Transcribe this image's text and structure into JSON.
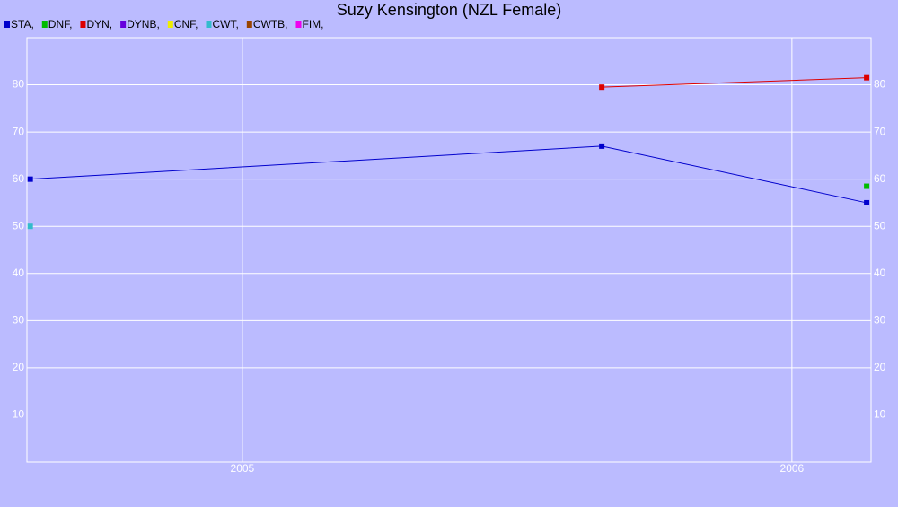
{
  "chart_data": {
    "type": "line",
    "title": "Suzy Kensington (NZL Female)",
    "series": [
      {
        "name": "STA,",
        "color": "#0000cc",
        "x": [
          2004.614,
          2005.654,
          2006.136
        ],
        "values": [
          60,
          67,
          55
        ]
      },
      {
        "name": "DNF,",
        "color": "#00bb00",
        "x": [
          2006.136
        ],
        "values": [
          58.5
        ]
      },
      {
        "name": "DYN,",
        "color": "#dd0000",
        "x": [
          2005.654,
          2006.136
        ],
        "values": [
          79.5,
          81.5
        ]
      },
      {
        "name": "DYNB,",
        "color": "#6600dd",
        "x": [],
        "values": []
      },
      {
        "name": "CNF,",
        "color": "#eeee00",
        "x": [],
        "values": []
      },
      {
        "name": "CWT,",
        "color": "#33bbcc",
        "x": [
          2004.614
        ],
        "values": [
          50
        ]
      },
      {
        "name": "CWTB,",
        "color": "#994400",
        "x": [],
        "values": []
      },
      {
        "name": "FIM,",
        "color": "#ee00ee",
        "x": [],
        "values": []
      }
    ],
    "xlim": [
      2004.608,
      2006.144
    ],
    "xticks": [
      2005,
      2006
    ],
    "ylim": [
      0,
      90
    ],
    "yticks": [
      10,
      20,
      30,
      40,
      50,
      60,
      70,
      80
    ],
    "grid": true,
    "legend": "top-left"
  }
}
